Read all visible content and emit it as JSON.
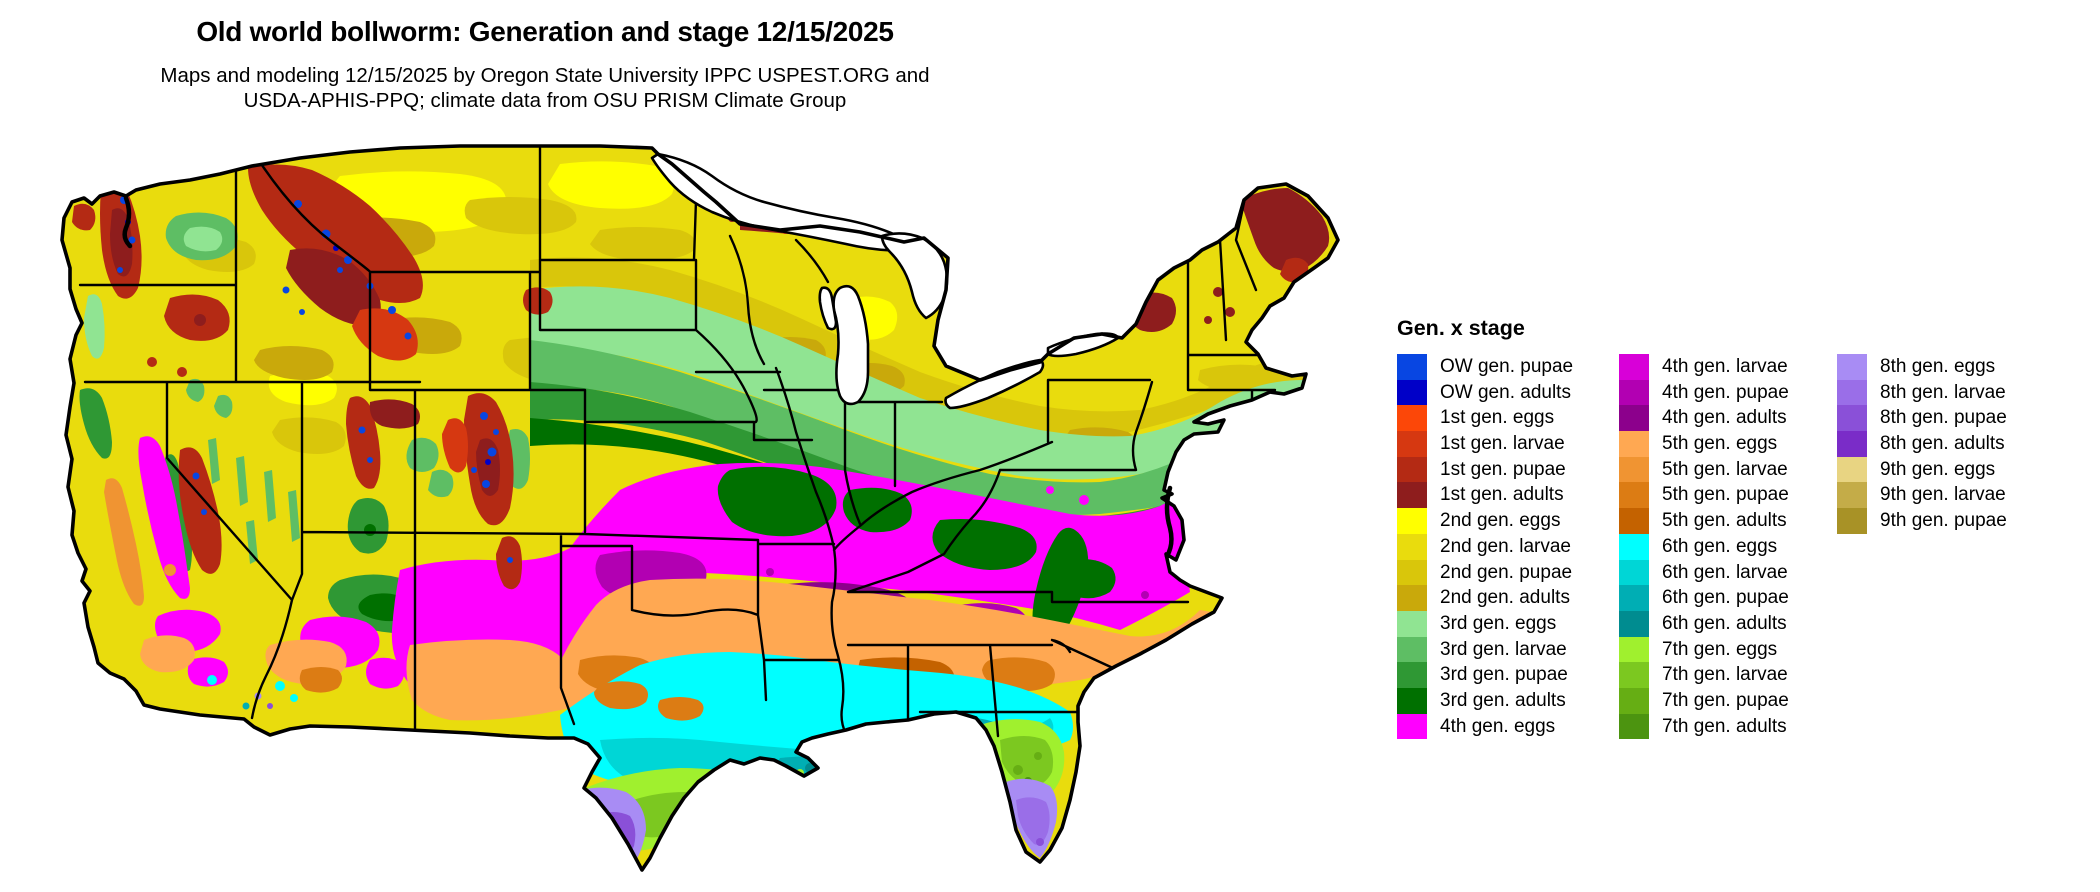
{
  "title": "Old world bollworm: Generation and stage 12/15/2025",
  "subtitle_line1": "Maps and modeling 12/15/2025 by Oregon State University IPPC USPEST.ORG and",
  "subtitle_line2": "USDA-APHIS-PPQ; climate data from OSU PRISM Climate Group",
  "legend": {
    "title": "Gen. x stage",
    "columns": [
      [
        {
          "label": "OW gen. pupae",
          "color": "ow_pupae"
        },
        {
          "label": "OW gen. adults",
          "color": "ow_adults"
        },
        {
          "label": "1st gen. eggs",
          "color": "g1_eggs"
        },
        {
          "label": "1st gen. larvae",
          "color": "g1_larvae"
        },
        {
          "label": "1st gen. pupae",
          "color": "g1_pupae"
        },
        {
          "label": "1st gen. adults",
          "color": "g1_adults"
        },
        {
          "label": "2nd gen. eggs",
          "color": "g2_eggs"
        },
        {
          "label": "2nd gen. larvae",
          "color": "g2_larvae"
        },
        {
          "label": "2nd gen. pupae",
          "color": "g2_pupae"
        },
        {
          "label": "2nd gen. adults",
          "color": "g2_adults"
        },
        {
          "label": "3rd gen. eggs",
          "color": "g3_eggs"
        },
        {
          "label": "3rd gen. larvae",
          "color": "g3_larvae"
        },
        {
          "label": "3rd gen. pupae",
          "color": "g3_pupae"
        },
        {
          "label": "3rd gen. adults",
          "color": "g3_adults"
        },
        {
          "label": "4th gen. eggs",
          "color": "g4_eggs"
        }
      ],
      [
        {
          "label": "4th gen. larvae",
          "color": "g4_larvae"
        },
        {
          "label": "4th gen. pupae",
          "color": "g4_pupae"
        },
        {
          "label": "4th gen. adults",
          "color": "g4_adults"
        },
        {
          "label": "5th gen. eggs",
          "color": "g5_eggs"
        },
        {
          "label": "5th gen. larvae",
          "color": "g5_larvae"
        },
        {
          "label": "5th gen. pupae",
          "color": "g5_pupae"
        },
        {
          "label": "5th gen. adults",
          "color": "g5_adults"
        },
        {
          "label": "6th gen. eggs",
          "color": "g6_eggs"
        },
        {
          "label": "6th gen. larvae",
          "color": "g6_larvae"
        },
        {
          "label": "6th gen. pupae",
          "color": "g6_pupae"
        },
        {
          "label": "6th gen. adults",
          "color": "g6_adults"
        },
        {
          "label": "7th gen. eggs",
          "color": "g7_eggs"
        },
        {
          "label": "7th gen. larvae",
          "color": "g7_larvae"
        },
        {
          "label": "7th gen. pupae",
          "color": "g7_pupae"
        },
        {
          "label": "7th gen. adults",
          "color": "g7_adults"
        }
      ],
      [
        {
          "label": "8th gen. eggs",
          "color": "g8_eggs"
        },
        {
          "label": "8th gen. larvae",
          "color": "g8_larvae"
        },
        {
          "label": "8th gen. pupae",
          "color": "g8_pupae"
        },
        {
          "label": "8th gen. adults",
          "color": "g8_adults"
        },
        {
          "label": "9th gen. eggs",
          "color": "g9_eggs"
        },
        {
          "label": "9th gen. larvae",
          "color": "g9_larvae"
        },
        {
          "label": "9th gen. pupae",
          "color": "g9_pupae"
        }
      ]
    ]
  },
  "colors": {
    "ow_pupae": "#0846E2",
    "ow_adults": "#0000C8",
    "g1_eggs": "#FC4708",
    "g1_larvae": "#D63811",
    "g1_pupae": "#B42A14",
    "g1_adults": "#8E1D1D",
    "g2_eggs": "#FFFF00",
    "g2_larvae": "#E9DC0D",
    "g2_pupae": "#D9C60B",
    "g2_adults": "#C9A90B",
    "g3_eggs": "#90E492",
    "g3_larvae": "#5EBE64",
    "g3_pupae": "#2F9834",
    "g3_adults": "#007000",
    "g4_eggs": "#FF00FF",
    "g4_larvae": "#D800D8",
    "g4_pupae": "#B200B2",
    "g4_adults": "#8C008C",
    "g5_eggs": "#FFA852",
    "g5_larvae": "#F09432",
    "g5_pupae": "#DC7C14",
    "g5_adults": "#C46200",
    "g6_eggs": "#00FFFF",
    "g6_larvae": "#00D6D6",
    "g6_pupae": "#00AEB4",
    "g6_adults": "#008C90",
    "g7_eggs": "#A0F02E",
    "g7_larvae": "#7CC820",
    "g7_pupae": "#66AE14",
    "g7_adults": "#4C9410",
    "g8_eggs": "#A88CF4",
    "g8_larvae": "#9A6EE8",
    "g8_pupae": "#8A50D8",
    "g8_adults": "#7A2CC8",
    "g9_eggs": "#E8D482",
    "g9_larvae": "#C4AC48",
    "g9_pupae": "#A89226",
    "border": "#000000"
  }
}
